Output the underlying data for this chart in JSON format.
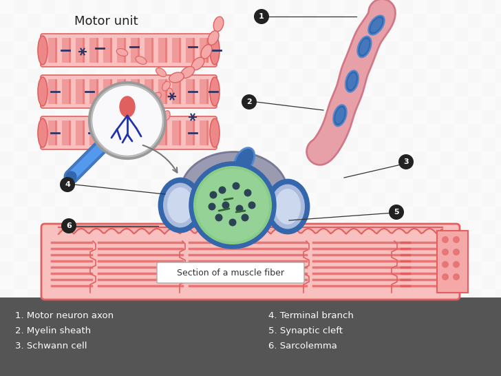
{
  "bg_checker_light": "#d8d8d8",
  "bg_checker_dark": "#c0c0c0",
  "legend_bg": "#555555",
  "legend_text_color": "#ffffff",
  "legend_items_left": [
    "1. Motor neuron axon",
    "2. Myelin sheath",
    "3. Schwann cell"
  ],
  "legend_items_right": [
    "4. Terminal branch",
    "5. Synaptic cleft",
    "6. Sarcolemma"
  ],
  "title": "Motor unit",
  "muscle_fiber_label": "Section of a muscle fiber",
  "salmon_color": "#f4a8a8",
  "salmon_mid": "#ee8888",
  "salmon_dark": "#e06060",
  "salmon_light": "#fad0d0",
  "salmon_fill": "#f9c0c0",
  "red_stripe": "#e05555",
  "red_stripe2": "#e87878",
  "neuron_body": "#8888aa",
  "axon_pink": "#e8a0a8",
  "axon_dark": "#d07888",
  "myelin_blue": "#3366aa",
  "myelin_light": "#5588cc",
  "terminal_blue_dark": "#2255aa",
  "terminal_blue_light": "#aabbdd",
  "terminal_inner": "#ccd8ee",
  "vesicle_green": "#88cc88",
  "vesicle_light": "#aaddaa",
  "vesicle_dark": "#44884a",
  "dot_dark": "#1a2a4a",
  "label_circle_color": "#222222",
  "label_text_color": "#ffffff",
  "line_color": "#333333",
  "arrow_color": "#777777",
  "lens_gray": "#999999",
  "handle_blue": "#4477bb",
  "handle_blue2": "#5599ee",
  "nerve_red": "#cc2222",
  "nerve_dark": "#993333",
  "sarco_top_color": "#f0b0b0",
  "white": "#ffffff"
}
